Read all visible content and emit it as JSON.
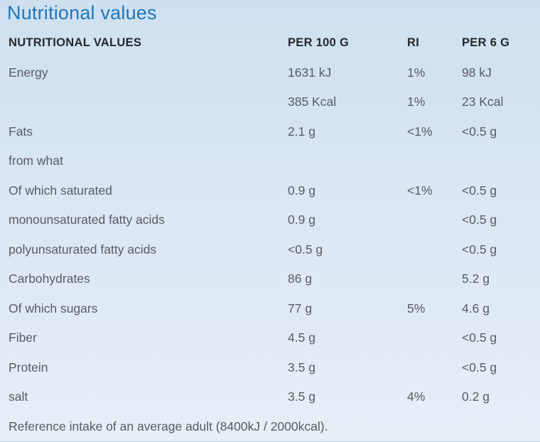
{
  "page": {
    "title": "Nutritional values"
  },
  "colors": {
    "accent_blue": "#2077b9",
    "background_top": "#cee0f0",
    "background_bottom": "#e7eef6",
    "body_text": "#585c63",
    "header_text": "#26282d"
  },
  "table": {
    "headers": {
      "label": "NUTRITIONAL VALUES",
      "per100": "PER 100 G",
      "ri": "RI",
      "per6": "PER 6 G"
    },
    "rows": [
      {
        "label": "Energy",
        "per100": "1631 kJ",
        "ri": "1%",
        "per6": "98 kJ"
      },
      {
        "label": "",
        "per100": "385 Kcal",
        "ri": "1%",
        "per6": "23 Kcal"
      },
      {
        "label": "Fats",
        "per100": "2.1 g",
        "ri": "<1%",
        "per6": "<0.5 g"
      },
      {
        "label": "from what",
        "per100": "",
        "ri": "",
        "per6": ""
      },
      {
        "label": "Of which saturated",
        "per100": "0.9 g",
        "ri": "<1%",
        "per6": "<0.5 g"
      },
      {
        "label": "monounsaturated fatty acids",
        "per100": "0.9 g",
        "ri": "",
        "per6": "<0.5 g"
      },
      {
        "label": "polyunsaturated fatty acids",
        "per100": "<0.5 g",
        "ri": "",
        "per6": "<0.5 g"
      },
      {
        "label": "Carbohydrates",
        "per100": "86 g",
        "ri": "",
        "per6": "5.2 g"
      },
      {
        "label": "Of which sugars",
        "per100": "77 g",
        "ri": "5%",
        "per6": "4.6 g"
      },
      {
        "label": "Fiber",
        "per100": "4.5 g",
        "ri": "",
        "per6": "<0.5 g"
      },
      {
        "label": "Protein",
        "per100": "3.5 g",
        "ri": "",
        "per6": "<0.5 g"
      },
      {
        "label": "salt",
        "per100": "3.5 g",
        "ri": "4%",
        "per6": "0.2 g"
      }
    ],
    "footer": "Reference intake of an average adult (8400kJ / 2000kcal)."
  }
}
